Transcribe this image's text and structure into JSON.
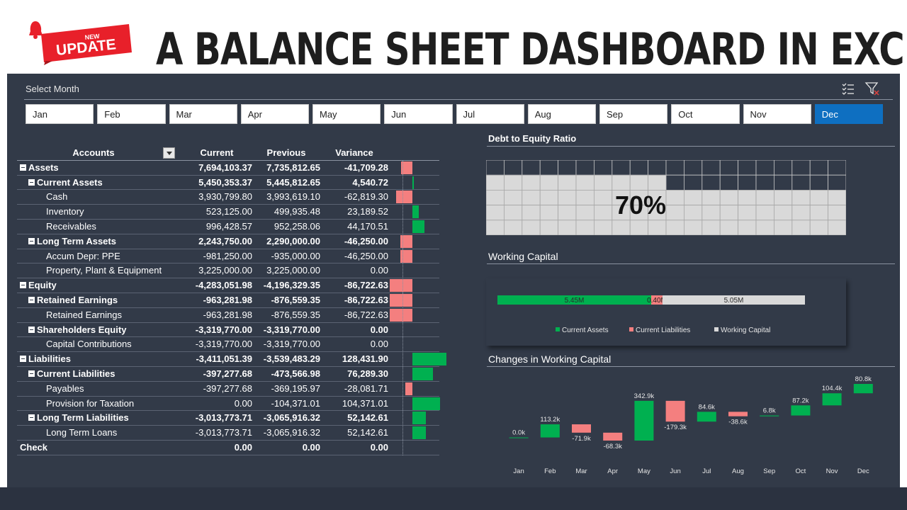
{
  "header": {
    "badge_top": "NEW",
    "badge_main": "UPDATE",
    "title": "A BALANCE SHEET DASHBOARD IN EXCEL"
  },
  "colors": {
    "positive": "#00b050",
    "negative": "#f47f7f",
    "grey": "#d9d9d9",
    "selected": "#0e6fc1",
    "panel": "#323a48"
  },
  "slicer": {
    "title": "Select Month",
    "icons": [
      "multi-select-icon",
      "clear-filter-icon"
    ],
    "months": [
      "Jan",
      "Feb",
      "Mar",
      "Apr",
      "May",
      "Jun",
      "Jul",
      "Aug",
      "Sep",
      "Oct",
      "Nov",
      "Dec"
    ],
    "selected": "Dec"
  },
  "table": {
    "headers": {
      "accounts": "Accounts",
      "current": "Current",
      "previous": "Previous",
      "variance": "Variance"
    },
    "rows": [
      {
        "label": "Assets",
        "level": 0,
        "bold": true,
        "toggle": true,
        "current": "7,694,103.37",
        "previous": "7,735,812.65",
        "variance": "-41,709.28",
        "var_value": -41709.28
      },
      {
        "label": "Current Assets",
        "level": 1,
        "bold": true,
        "toggle": true,
        "current": "5,450,353.37",
        "previous": "5,445,812.65",
        "variance": "4,540.72",
        "var_value": 4540.72
      },
      {
        "label": "Cash",
        "level": 2,
        "bold": false,
        "toggle": false,
        "current": "3,930,799.80",
        "previous": "3,993,619.10",
        "variance": "-62,819.30",
        "var_value": -62819.3
      },
      {
        "label": "Inventory",
        "level": 2,
        "bold": false,
        "toggle": false,
        "current": "523,125.00",
        "previous": "499,935.48",
        "variance": "23,189.52",
        "var_value": 23189.52
      },
      {
        "label": "Receivables",
        "level": 2,
        "bold": false,
        "toggle": false,
        "current": "996,428.57",
        "previous": "952,258.06",
        "variance": "44,170.51",
        "var_value": 44170.51
      },
      {
        "label": "Long Term Assets",
        "level": 1,
        "bold": true,
        "toggle": true,
        "current": "2,243,750.00",
        "previous": "2,290,000.00",
        "variance": "-46,250.00",
        "var_value": -46250.0
      },
      {
        "label": "Accum Depr: PPE",
        "level": 2,
        "bold": false,
        "toggle": false,
        "current": "-981,250.00",
        "previous": "-935,000.00",
        "variance": "-46,250.00",
        "var_value": -46250.0
      },
      {
        "label": "Property, Plant & Equipment",
        "level": 2,
        "bold": false,
        "toggle": false,
        "current": "3,225,000.00",
        "previous": "3,225,000.00",
        "variance": "0.00",
        "var_value": 0
      },
      {
        "label": "Equity",
        "level": 0,
        "bold": true,
        "toggle": true,
        "current": "-4,283,051.98",
        "previous": "-4,196,329.35",
        "variance": "-86,722.63",
        "var_value": -86722.63
      },
      {
        "label": "Retained Earnings",
        "level": 1,
        "bold": true,
        "toggle": true,
        "current": "-963,281.98",
        "previous": "-876,559.35",
        "variance": "-86,722.63",
        "var_value": -86722.63
      },
      {
        "label": "Retained Earnings",
        "level": 2,
        "bold": false,
        "toggle": false,
        "current": "-963,281.98",
        "previous": "-876,559.35",
        "variance": "-86,722.63",
        "var_value": -86722.63
      },
      {
        "label": "Shareholders Equity",
        "level": 1,
        "bold": true,
        "toggle": true,
        "current": "-3,319,770.00",
        "previous": "-3,319,770.00",
        "variance": "0.00",
        "var_value": 0
      },
      {
        "label": "Capital Contributions",
        "level": 2,
        "bold": false,
        "toggle": false,
        "current": "-3,319,770.00",
        "previous": "-3,319,770.00",
        "variance": "0.00",
        "var_value": 0
      },
      {
        "label": "Liabilities",
        "level": 0,
        "bold": true,
        "toggle": true,
        "current": "-3,411,051.39",
        "previous": "-3,539,483.29",
        "variance": "128,431.90",
        "var_value": 128431.9
      },
      {
        "label": "Current Liabilities",
        "level": 1,
        "bold": true,
        "toggle": true,
        "current": "-397,277.68",
        "previous": "-473,566.98",
        "variance": "76,289.30",
        "var_value": 76289.3
      },
      {
        "label": "Payables",
        "level": 2,
        "bold": false,
        "toggle": false,
        "current": "-397,277.68",
        "previous": "-369,195.97",
        "variance": "-28,081.71",
        "var_value": -28081.71
      },
      {
        "label": "Provision for Taxation",
        "level": 2,
        "bold": false,
        "toggle": false,
        "current": "0.00",
        "previous": "-104,371.01",
        "variance": "104,371.01",
        "var_value": 104371.01
      },
      {
        "label": "Long Term Liabilities",
        "level": 1,
        "bold": true,
        "toggle": true,
        "current": "-3,013,773.71",
        "previous": "-3,065,916.32",
        "variance": "52,142.61",
        "var_value": 52142.61
      },
      {
        "label": "Long Term Loans",
        "level": 2,
        "bold": false,
        "toggle": false,
        "current": "-3,013,773.71",
        "previous": "-3,065,916.32",
        "variance": "52,142.61",
        "var_value": 52142.61
      },
      {
        "label": "Check",
        "level": 0,
        "bold": true,
        "toggle": false,
        "current": "0.00",
        "previous": "0.00",
        "variance": "0.00",
        "var_value": 0
      }
    ]
  },
  "debt_to_equity": {
    "title": "Debt to Equity Ratio",
    "value_label": "70%",
    "percent": 70
  },
  "working_capital": {
    "title": "Working Capital"
  },
  "changes_title": "Changes in Working Capital",
  "chart_data": [
    {
      "type": "bar",
      "stacked": true,
      "orientation": "horizontal",
      "series": [
        {
          "name": "Current Assets",
          "values": [
            5.45
          ],
          "label": "5.45M",
          "color": "#00b050"
        },
        {
          "name": "Current Liabilities",
          "values": [
            0.4
          ],
          "label": "0.40M",
          "color": "#f47f7f"
        },
        {
          "name": "Working Capital",
          "values": [
            5.05
          ],
          "label": "5.05M",
          "color": "#d9d9d9"
        }
      ],
      "legend": "bottom"
    },
    {
      "type": "bar",
      "subtype": "waterfall",
      "categories": [
        "Jan",
        "Feb",
        "Mar",
        "Apr",
        "May",
        "Jun",
        "Jul",
        "Aug",
        "Sep",
        "Oct",
        "Nov",
        "Dec"
      ],
      "values": [
        0.0,
        113.2,
        -71.9,
        -68.3,
        342.9,
        -179.3,
        84.6,
        -38.6,
        6.8,
        87.2,
        104.4,
        80.8
      ],
      "labels": [
        "0.0k",
        "113.2k",
        "-71.9k",
        "-68.3k",
        "342.9k",
        "-179.3k",
        "84.6k",
        "-38.6k",
        "6.8k",
        "87.2k",
        "104.4k",
        "80.8k"
      ],
      "units": "k"
    }
  ]
}
